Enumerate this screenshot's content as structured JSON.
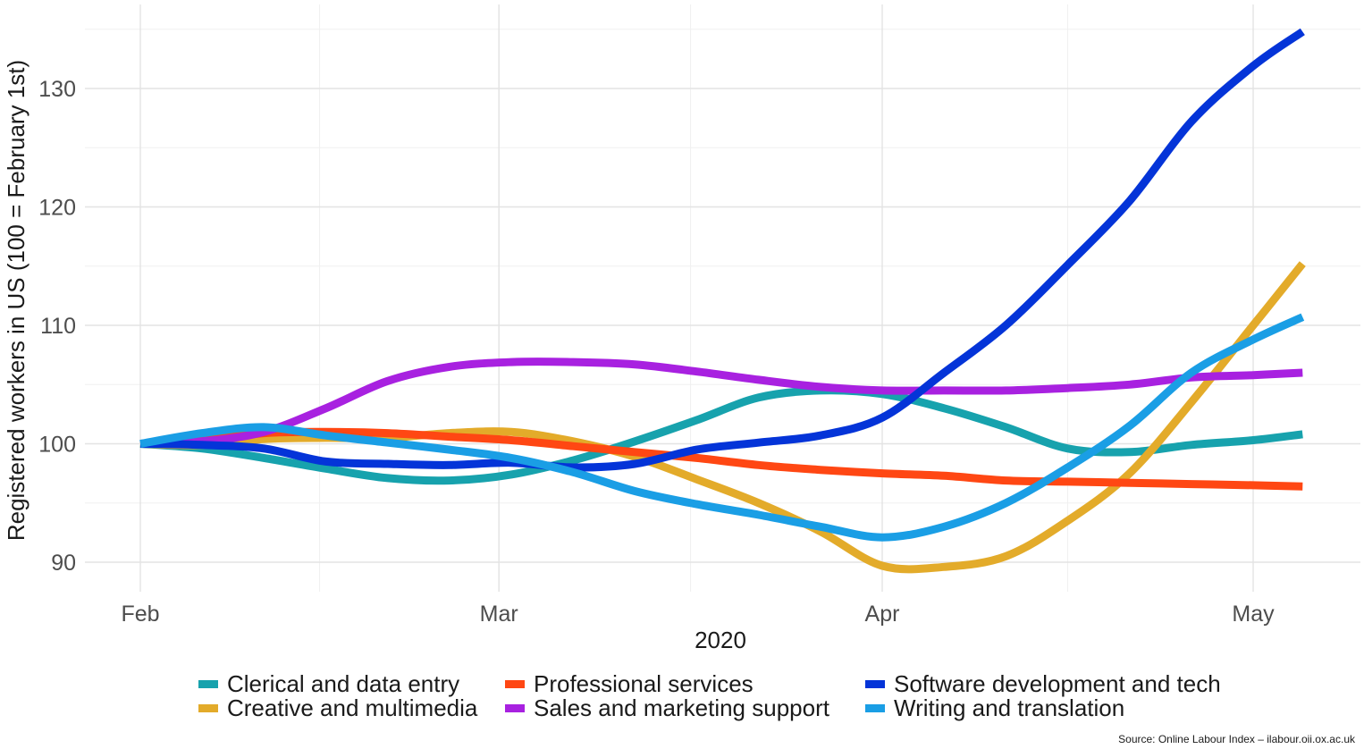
{
  "chart_data": {
    "type": "line",
    "title": "",
    "xlabel": "2020",
    "ylabel": "Registered workers in US (100 = February 1st)",
    "x_ticks": [
      "Feb",
      "Mar",
      "Apr",
      "May"
    ],
    "y_ticks": [
      90,
      100,
      110,
      120,
      130
    ],
    "ylim": [
      87.5,
      137
    ],
    "x_unit": "days since Feb 1",
    "grid": true,
    "legend_position": "bottom",
    "x": [
      0,
      5,
      10,
      15,
      20,
      25,
      30,
      35,
      40,
      45,
      50,
      55,
      60,
      65,
      70,
      75,
      80,
      85,
      90,
      94
    ],
    "series": [
      {
        "name": "Clerical and data entry",
        "color": "#17a2ad",
        "values": [
          100,
          99.6,
          98.8,
          97.9,
          97.1,
          96.9,
          97.4,
          98.6,
          100.2,
          102.0,
          103.9,
          104.5,
          104.2,
          103.0,
          101.4,
          99.6,
          99.3,
          99.9,
          100.3,
          100.8
        ]
      },
      {
        "name": "Creative and multimedia",
        "color": "#e3ab2a",
        "values": [
          100,
          99.9,
          100.4,
          100.5,
          100.5,
          100.9,
          101.0,
          100.2,
          98.9,
          97.0,
          95.0,
          92.6,
          89.7,
          89.6,
          90.5,
          93.5,
          97.5,
          103.5,
          110.0,
          115.2
        ]
      },
      {
        "name": "Professional services",
        "color": "#ff4713",
        "values": [
          100,
          100.3,
          100.9,
          101.0,
          100.9,
          100.6,
          100.3,
          99.8,
          99.3,
          98.8,
          98.2,
          97.8,
          97.5,
          97.3,
          96.9,
          96.8,
          96.7,
          96.6,
          96.5,
          96.4
        ]
      },
      {
        "name": "Sales and marketing support",
        "color": "#a821e0",
        "values": [
          100,
          100.2,
          101.0,
          103.0,
          105.3,
          106.5,
          106.9,
          106.9,
          106.7,
          106.1,
          105.4,
          104.8,
          104.5,
          104.5,
          104.5,
          104.7,
          105.0,
          105.6,
          105.8,
          106.0
        ]
      },
      {
        "name": "Software development and tech",
        "color": "#0434d8",
        "values": [
          100,
          99.9,
          99.6,
          98.5,
          98.3,
          98.2,
          98.4,
          98.0,
          98.3,
          99.5,
          100.1,
          100.7,
          102.2,
          106.0,
          110.0,
          115.1,
          120.5,
          127.2,
          131.9,
          134.8
        ]
      },
      {
        "name": "Writing and translation",
        "color": "#1a9ee5",
        "values": [
          100,
          100.9,
          101.4,
          100.7,
          100.1,
          99.5,
          98.8,
          97.6,
          96.0,
          94.9,
          94.0,
          93.0,
          92.1,
          93.0,
          95.0,
          98.0,
          101.5,
          106.0,
          108.8,
          110.7
        ]
      }
    ],
    "legend_order": [
      0,
      2,
      4,
      1,
      3,
      5
    ]
  },
  "source": "Source: Online Labour Index – ilabour.oii.ox.ac.uk"
}
